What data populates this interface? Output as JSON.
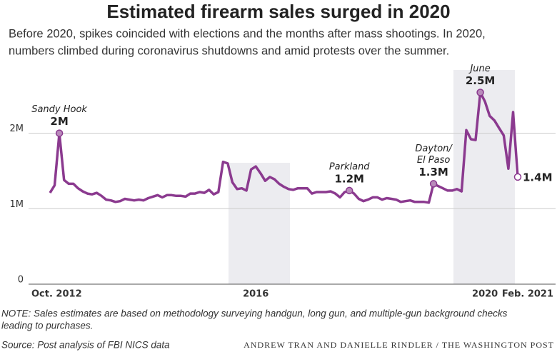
{
  "chart_data": {
    "type": "line",
    "title": "Estimated firearm sales surged in 2020",
    "subtitle": [
      "Before 2020, spikes coincided with elections and the months after mass shootings. In 2020,",
      "numbers climbed during coronavirus shutdowns and amid protests over the summer."
    ],
    "categories": [
      "Oct. 2012",
      null,
      null,
      null,
      null,
      null,
      null,
      null,
      null,
      null,
      null,
      null,
      null,
      null,
      null,
      null,
      null,
      null,
      null,
      null,
      null,
      null,
      null,
      null,
      null,
      null,
      null,
      null,
      null,
      null,
      null,
      null,
      null,
      null,
      null,
      null,
      null,
      null,
      null,
      null,
      null,
      null,
      null,
      null,
      "2016",
      null,
      null,
      null,
      null,
      null,
      null,
      null,
      null,
      null,
      null,
      null,
      null,
      null,
      null,
      null,
      null,
      null,
      null,
      null,
      null,
      null,
      null,
      null,
      null,
      null,
      null,
      null,
      null,
      null,
      null,
      null,
      null,
      null,
      null,
      null,
      null,
      null,
      null,
      null,
      null,
      null,
      null,
      null,
      null,
      null,
      null,
      null,
      null,
      "2020",
      null,
      null,
      null,
      null,
      null,
      null,
      "Feb. 2021"
    ],
    "series": [
      {
        "name": "Estimated firearm sales",
        "color": "#8b3a8f",
        "values": [
          1210000,
          1310000,
          2000000,
          1380000,
          1330000,
          1330000,
          1270000,
          1230000,
          1200000,
          1190000,
          1210000,
          1170000,
          1120000,
          1110000,
          1090000,
          1100000,
          1130000,
          1120000,
          1110000,
          1120000,
          1110000,
          1140000,
          1160000,
          1180000,
          1150000,
          1180000,
          1180000,
          1170000,
          1170000,
          1160000,
          1200000,
          1200000,
          1220000,
          1210000,
          1250000,
          1190000,
          1220000,
          1620000,
          1600000,
          1350000,
          1260000,
          1270000,
          1240000,
          1520000,
          1560000,
          1470000,
          1370000,
          1420000,
          1390000,
          1330000,
          1290000,
          1260000,
          1250000,
          1270000,
          1270000,
          1270000,
          1200000,
          1220000,
          1220000,
          1220000,
          1230000,
          1200000,
          1150000,
          1220000,
          1240000,
          1200000,
          1130000,
          1100000,
          1120000,
          1150000,
          1150000,
          1120000,
          1140000,
          1130000,
          1120000,
          1090000,
          1100000,
          1110000,
          1090000,
          1090000,
          1090000,
          1080000,
          1330000,
          1300000,
          1270000,
          1240000,
          1240000,
          1260000,
          1230000,
          2040000,
          1920000,
          1910000,
          2540000,
          2420000,
          2230000,
          2170000,
          2070000,
          1970000,
          1530000,
          2280000,
          1420000
        ],
        "value_labels": [
          null,
          null,
          "2M",
          null,
          null,
          null,
          null,
          null,
          null,
          null,
          null,
          null,
          null,
          null,
          null,
          null,
          null,
          null,
          null,
          null,
          null,
          null,
          null,
          null,
          null,
          null,
          null,
          null,
          null,
          null,
          null,
          null,
          null,
          null,
          null,
          null,
          null,
          null,
          null,
          null,
          null,
          null,
          null,
          null,
          null,
          null,
          null,
          null,
          null,
          null,
          null,
          null,
          null,
          null,
          null,
          null,
          null,
          null,
          null,
          null,
          null,
          null,
          null,
          null,
          "1.2M",
          null,
          null,
          null,
          null,
          null,
          null,
          null,
          null,
          null,
          null,
          null,
          null,
          null,
          null,
          null,
          null,
          null,
          "1.3M",
          null,
          null,
          null,
          null,
          null,
          null,
          null,
          null,
          null,
          "2.5M",
          null,
          null,
          null,
          null,
          null,
          null,
          null,
          "1.4M"
        ]
      }
    ],
    "annotations": [
      {
        "at": 2,
        "lines": [
          "Sandy Hook"
        ]
      },
      {
        "at": 64,
        "lines": [
          "Parkland"
        ]
      },
      {
        "at": 82,
        "lines": [
          "Dayton/",
          "El Paso"
        ]
      },
      {
        "at": 92,
        "lines": [
          "June"
        ]
      }
    ],
    "ylim": [
      0,
      2800000
    ],
    "yticks": [
      0,
      {
        "value": 1000000,
        "label": "1M"
      },
      {
        "value": 2000000,
        "label": "2M"
      }
    ],
    "grid": true,
    "note": [
      "NOTE: Sales estimates are based on methodology surveying handgun, long gun, and multiple-gun background checks",
      "leading to purchases."
    ],
    "source": "Source: Post analysis of FBI NICS data",
    "credit": "ANDREW TRAN AND DANIELLE RINDLER / THE WASHINGTON POST"
  }
}
